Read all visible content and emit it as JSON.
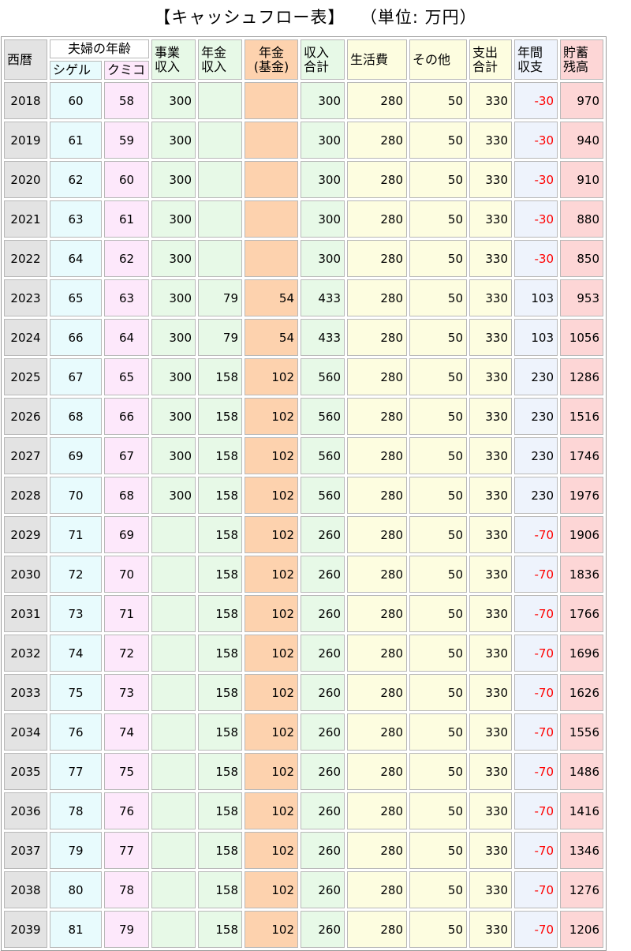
{
  "title": "【キャッシュフロー表】",
  "unit_label": "（単位: 万円）",
  "headers": {
    "year": "西暦",
    "couple_age": "夫婦の年齢",
    "shigeru": "シゲル",
    "kumiko": "クミコ",
    "business_income": [
      "事業",
      "収入"
    ],
    "pension_income": [
      "年金",
      "収入"
    ],
    "pension_fund": [
      "年金",
      "(基金)"
    ],
    "income_total": [
      "収入",
      "合計"
    ],
    "living_cost": "生活費",
    "other": "その他",
    "expense_total": [
      "支出",
      "合計"
    ],
    "annual_balance": [
      "年間",
      "収支"
    ],
    "savings": [
      "貯蓄",
      "残高"
    ]
  },
  "rows": [
    {
      "year": "2018",
      "shige": "60",
      "kumi": "58",
      "biz": "300",
      "pen": "",
      "fund": "",
      "inc": "300",
      "living": "280",
      "other": "50",
      "exp": "330",
      "bal": "-30",
      "sav": "970"
    },
    {
      "year": "2019",
      "shige": "61",
      "kumi": "59",
      "biz": "300",
      "pen": "",
      "fund": "",
      "inc": "300",
      "living": "280",
      "other": "50",
      "exp": "330",
      "bal": "-30",
      "sav": "940"
    },
    {
      "year": "2020",
      "shige": "62",
      "kumi": "60",
      "biz": "300",
      "pen": "",
      "fund": "",
      "inc": "300",
      "living": "280",
      "other": "50",
      "exp": "330",
      "bal": "-30",
      "sav": "910"
    },
    {
      "year": "2021",
      "shige": "63",
      "kumi": "61",
      "biz": "300",
      "pen": "",
      "fund": "",
      "inc": "300",
      "living": "280",
      "other": "50",
      "exp": "330",
      "bal": "-30",
      "sav": "880"
    },
    {
      "year": "2022",
      "shige": "64",
      "kumi": "62",
      "biz": "300",
      "pen": "",
      "fund": "",
      "inc": "300",
      "living": "280",
      "other": "50",
      "exp": "330",
      "bal": "-30",
      "sav": "850"
    },
    {
      "year": "2023",
      "shige": "65",
      "kumi": "63",
      "biz": "300",
      "pen": "79",
      "fund": "54",
      "inc": "433",
      "living": "280",
      "other": "50",
      "exp": "330",
      "bal": "103",
      "sav": "953"
    },
    {
      "year": "2024",
      "shige": "66",
      "kumi": "64",
      "biz": "300",
      "pen": "79",
      "fund": "54",
      "inc": "433",
      "living": "280",
      "other": "50",
      "exp": "330",
      "bal": "103",
      "sav": "1056"
    },
    {
      "year": "2025",
      "shige": "67",
      "kumi": "65",
      "biz": "300",
      "pen": "158",
      "fund": "102",
      "inc": "560",
      "living": "280",
      "other": "50",
      "exp": "330",
      "bal": "230",
      "sav": "1286"
    },
    {
      "year": "2026",
      "shige": "68",
      "kumi": "66",
      "biz": "300",
      "pen": "158",
      "fund": "102",
      "inc": "560",
      "living": "280",
      "other": "50",
      "exp": "330",
      "bal": "230",
      "sav": "1516"
    },
    {
      "year": "2027",
      "shige": "69",
      "kumi": "67",
      "biz": "300",
      "pen": "158",
      "fund": "102",
      "inc": "560",
      "living": "280",
      "other": "50",
      "exp": "330",
      "bal": "230",
      "sav": "1746"
    },
    {
      "year": "2028",
      "shige": "70",
      "kumi": "68",
      "biz": "300",
      "pen": "158",
      "fund": "102",
      "inc": "560",
      "living": "280",
      "other": "50",
      "exp": "330",
      "bal": "230",
      "sav": "1976"
    },
    {
      "year": "2029",
      "shige": "71",
      "kumi": "69",
      "biz": "",
      "pen": "158",
      "fund": "102",
      "inc": "260",
      "living": "280",
      "other": "50",
      "exp": "330",
      "bal": "-70",
      "sav": "1906"
    },
    {
      "year": "2030",
      "shige": "72",
      "kumi": "70",
      "biz": "",
      "pen": "158",
      "fund": "102",
      "inc": "260",
      "living": "280",
      "other": "50",
      "exp": "330",
      "bal": "-70",
      "sav": "1836"
    },
    {
      "year": "2031",
      "shige": "73",
      "kumi": "71",
      "biz": "",
      "pen": "158",
      "fund": "102",
      "inc": "260",
      "living": "280",
      "other": "50",
      "exp": "330",
      "bal": "-70",
      "sav": "1766"
    },
    {
      "year": "2032",
      "shige": "74",
      "kumi": "72",
      "biz": "",
      "pen": "158",
      "fund": "102",
      "inc": "260",
      "living": "280",
      "other": "50",
      "exp": "330",
      "bal": "-70",
      "sav": "1696"
    },
    {
      "year": "2033",
      "shige": "75",
      "kumi": "73",
      "biz": "",
      "pen": "158",
      "fund": "102",
      "inc": "260",
      "living": "280",
      "other": "50",
      "exp": "330",
      "bal": "-70",
      "sav": "1626"
    },
    {
      "year": "2034",
      "shige": "76",
      "kumi": "74",
      "biz": "",
      "pen": "158",
      "fund": "102",
      "inc": "260",
      "living": "280",
      "other": "50",
      "exp": "330",
      "bal": "-70",
      "sav": "1556"
    },
    {
      "year": "2035",
      "shige": "77",
      "kumi": "75",
      "biz": "",
      "pen": "158",
      "fund": "102",
      "inc": "260",
      "living": "280",
      "other": "50",
      "exp": "330",
      "bal": "-70",
      "sav": "1486"
    },
    {
      "year": "2036",
      "shige": "78",
      "kumi": "76",
      "biz": "",
      "pen": "158",
      "fund": "102",
      "inc": "260",
      "living": "280",
      "other": "50",
      "exp": "330",
      "bal": "-70",
      "sav": "1416"
    },
    {
      "year": "2037",
      "shige": "79",
      "kumi": "77",
      "biz": "",
      "pen": "158",
      "fund": "102",
      "inc": "260",
      "living": "280",
      "other": "50",
      "exp": "330",
      "bal": "-70",
      "sav": "1346"
    },
    {
      "year": "2038",
      "shige": "80",
      "kumi": "78",
      "biz": "",
      "pen": "158",
      "fund": "102",
      "inc": "260",
      "living": "280",
      "other": "50",
      "exp": "330",
      "bal": "-70",
      "sav": "1276"
    },
    {
      "year": "2039",
      "shige": "81",
      "kumi": "79",
      "biz": "",
      "pen": "158",
      "fund": "102",
      "inc": "260",
      "living": "280",
      "other": "50",
      "exp": "330",
      "bal": "-70",
      "sav": "1206"
    }
  ],
  "colors": {
    "negative_text": "#ff0000",
    "year_bg": "#e3e3e3",
    "shigeru_bg": "#e8fbfd",
    "kumiko_bg": "#fde8fb",
    "income_bg": "#e7f9e7",
    "fund_bg": "#fdd2ae",
    "expense_bg": "#fdfde0",
    "balance_bg": "#eef3fc",
    "savings_bg": "#fdd6d6"
  }
}
